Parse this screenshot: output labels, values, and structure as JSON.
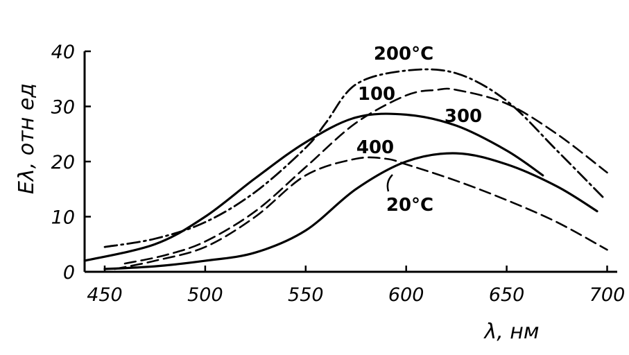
{
  "chart_data": {
    "type": "line",
    "title": "",
    "xlabel": "λ, нм",
    "ylabel": "Eλ, отн ед",
    "xlim": [
      440,
      705
    ],
    "ylim": [
      0,
      40
    ],
    "x_ticks": [
      450,
      500,
      550,
      600,
      650,
      700
    ],
    "y_ticks": [
      0,
      10,
      20,
      30,
      40
    ],
    "grid": false,
    "series": [
      {
        "name": "20°C",
        "style": "solid",
        "x": [
          450,
          475,
          500,
          525,
          550,
          575,
          600,
          625,
          650,
          675,
          695
        ],
        "y": [
          0.5,
          1.0,
          2.0,
          3.5,
          7.5,
          15.0,
          20.0,
          21.5,
          19.5,
          15.5,
          11.0
        ]
      },
      {
        "name": "100",
        "style": "dashed",
        "x": [
          460,
          480,
          500,
          525,
          550,
          575,
          600,
          615,
          625,
          650,
          675,
          700
        ],
        "y": [
          1.5,
          3.0,
          5.5,
          11.0,
          19.0,
          27.0,
          32.0,
          33.0,
          33.0,
          30.5,
          25.0,
          18.0
        ]
      },
      {
        "name": "200°C",
        "style": "dash-dot",
        "x": [
          450,
          475,
          500,
          525,
          550,
          560,
          575,
          600,
          625,
          650,
          675,
          698
        ],
        "y": [
          4.5,
          6.0,
          9.0,
          14.5,
          22.5,
          27.0,
          34.0,
          36.5,
          36.0,
          31.0,
          22.0,
          13.5
        ]
      },
      {
        "name": "300",
        "style": "solid",
        "x": [
          440,
          475,
          500,
          525,
          550,
          575,
          600,
          625,
          650,
          668
        ],
        "y": [
          2.0,
          5.0,
          10.0,
          17.0,
          23.5,
          28.0,
          28.5,
          26.5,
          22.0,
          17.5
        ]
      },
      {
        "name": "400",
        "style": "dashed",
        "x": [
          455,
          475,
          500,
          525,
          550,
          575,
          590,
          600,
          625,
          650,
          675,
          700
        ],
        "y": [
          0.5,
          2.0,
          4.5,
          10.0,
          17.5,
          20.5,
          20.5,
          19.5,
          16.5,
          13.0,
          9.0,
          4.0
        ]
      }
    ],
    "annotations": [
      {
        "text": "200°C",
        "series": "200°C"
      },
      {
        "text": "100",
        "series": "100"
      },
      {
        "text": "300",
        "series": "300"
      },
      {
        "text": "400",
        "series": "400"
      },
      {
        "text": "20°C",
        "series": "20°C"
      }
    ]
  }
}
